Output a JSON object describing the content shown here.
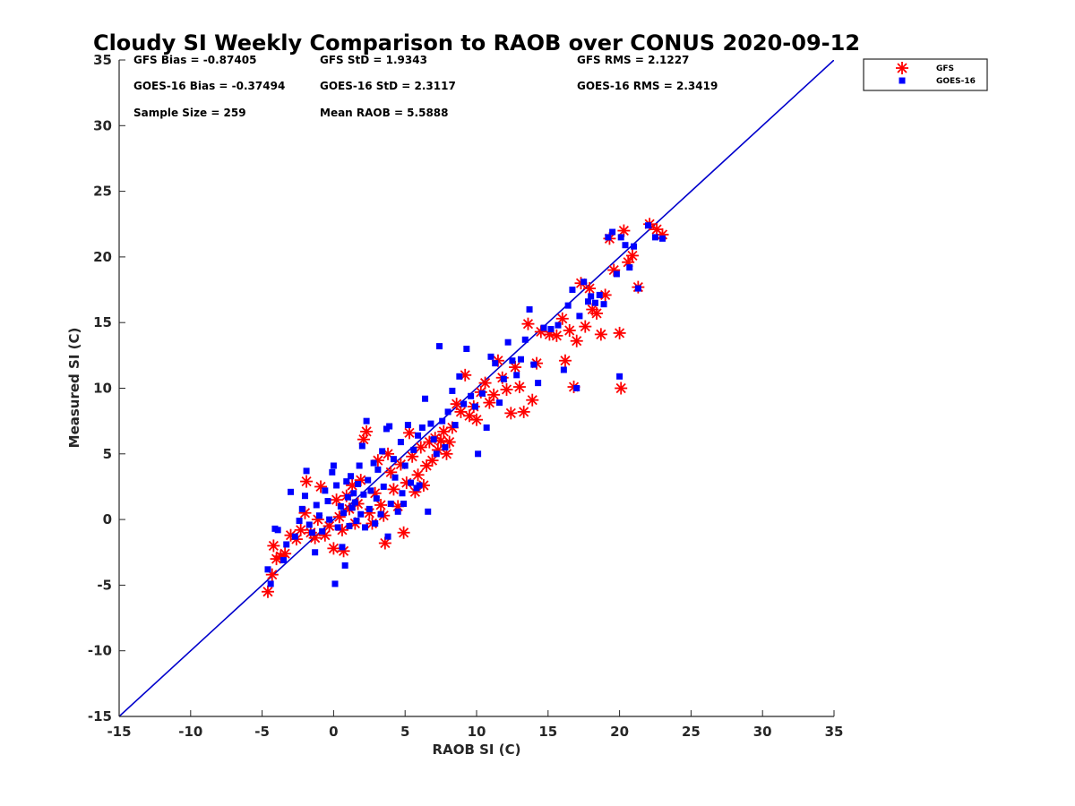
{
  "chart_data": {
    "type": "scatter",
    "title": "Cloudy SI Weekly Comparison to RAOB over CONUS 2020-09-12",
    "xlabel": "RAOB SI (C)",
    "ylabel": "Measured SI (C)",
    "xlim": [
      -15,
      35
    ],
    "ylim": [
      -15,
      35
    ],
    "xticks": [
      -15,
      -10,
      -5,
      0,
      5,
      10,
      15,
      20,
      25,
      30,
      35
    ],
    "yticks": [
      -15,
      -10,
      -5,
      0,
      5,
      10,
      15,
      20,
      25,
      30,
      35
    ],
    "grid": false,
    "legend_position": "top-right outside",
    "reference_line": {
      "name": "1:1 line",
      "x": [
        -15,
        35
      ],
      "y": [
        -15,
        35
      ],
      "color": "#0000cc"
    },
    "stats": [
      {
        "id": "gfs-bias",
        "text": "GFS Bias = -0.87405"
      },
      {
        "id": "gfs-std",
        "text": "GFS StD = 1.9343"
      },
      {
        "id": "gfs-rms",
        "text": "GFS RMS = 2.1227"
      },
      {
        "id": "goes-bias",
        "text": "GOES-16 Bias = -0.37494"
      },
      {
        "id": "goes-std",
        "text": "GOES-16 StD = 2.3117"
      },
      {
        "id": "goes-rms",
        "text": "GOES-16 RMS = 2.3419"
      },
      {
        "id": "sample-size",
        "text": "Sample Size = 259"
      },
      {
        "id": "mean-raob",
        "text": "Mean RAOB = 5.5888"
      }
    ],
    "series": [
      {
        "name": "GFS",
        "marker": "asterisk",
        "color": "#ff0000",
        "points": [
          [
            -4.6,
            -5.5
          ],
          [
            -4.3,
            -4.2
          ],
          [
            -4.2,
            -2.0
          ],
          [
            -4.0,
            -3.0
          ],
          [
            -3.7,
            -2.8
          ],
          [
            -3.4,
            -2.6
          ],
          [
            -3.0,
            -1.2
          ],
          [
            -2.6,
            -1.5
          ],
          [
            -2.3,
            -0.8
          ],
          [
            -2.0,
            0.5
          ],
          [
            -1.9,
            2.9
          ],
          [
            -1.6,
            -1.0
          ],
          [
            -1.3,
            -1.4
          ],
          [
            -1.1,
            0.0
          ],
          [
            -0.9,
            2.5
          ],
          [
            -0.6,
            -1.2
          ],
          [
            -0.3,
            -0.5
          ],
          [
            0.0,
            -2.2
          ],
          [
            0.2,
            1.5
          ],
          [
            0.4,
            0.2
          ],
          [
            0.6,
            -0.8
          ],
          [
            0.7,
            -2.4
          ],
          [
            0.9,
            1.8
          ],
          [
            1.1,
            0.8
          ],
          [
            1.3,
            2.6
          ],
          [
            1.5,
            -0.3
          ],
          [
            1.7,
            1.2
          ],
          [
            1.9,
            3.0
          ],
          [
            2.1,
            6.1
          ],
          [
            2.3,
            6.7
          ],
          [
            2.5,
            0.5
          ],
          [
            2.7,
            -0.3
          ],
          [
            2.9,
            2.0
          ],
          [
            3.1,
            4.5
          ],
          [
            3.3,
            1.1
          ],
          [
            3.5,
            0.3
          ],
          [
            3.6,
            -1.8
          ],
          [
            3.8,
            5.0
          ],
          [
            4.0,
            3.6
          ],
          [
            4.2,
            2.3
          ],
          [
            4.5,
            1.0
          ],
          [
            4.7,
            4.2
          ],
          [
            4.9,
            -1.0
          ],
          [
            5.1,
            2.8
          ],
          [
            5.3,
            6.6
          ],
          [
            5.5,
            4.8
          ],
          [
            5.7,
            2.1
          ],
          [
            5.9,
            3.4
          ],
          [
            6.1,
            5.5
          ],
          [
            6.3,
            2.6
          ],
          [
            6.5,
            4.1
          ],
          [
            6.7,
            5.9
          ],
          [
            6.9,
            4.5
          ],
          [
            7.1,
            6.2
          ],
          [
            7.3,
            5.3
          ],
          [
            7.5,
            6.0
          ],
          [
            7.7,
            6.7
          ],
          [
            7.9,
            5.0
          ],
          [
            8.1,
            5.9
          ],
          [
            8.3,
            7.0
          ],
          [
            8.6,
            8.8
          ],
          [
            8.9,
            8.2
          ],
          [
            9.2,
            11.0
          ],
          [
            9.5,
            7.9
          ],
          [
            9.8,
            8.6
          ],
          [
            10.0,
            7.6
          ],
          [
            10.3,
            9.7
          ],
          [
            10.6,
            10.4
          ],
          [
            10.9,
            8.9
          ],
          [
            11.2,
            9.5
          ],
          [
            11.5,
            12.1
          ],
          [
            11.8,
            10.8
          ],
          [
            12.1,
            9.9
          ],
          [
            12.4,
            8.1
          ],
          [
            12.7,
            11.6
          ],
          [
            13.0,
            10.1
          ],
          [
            13.3,
            8.2
          ],
          [
            13.6,
            14.9
          ],
          [
            13.9,
            9.1
          ],
          [
            14.2,
            11.9
          ],
          [
            14.5,
            14.3
          ],
          [
            15.1,
            14.1
          ],
          [
            15.6,
            14.0
          ],
          [
            16.0,
            15.3
          ],
          [
            16.2,
            12.1
          ],
          [
            16.5,
            14.4
          ],
          [
            16.8,
            10.1
          ],
          [
            17.0,
            13.6
          ],
          [
            17.3,
            18.0
          ],
          [
            17.6,
            14.7
          ],
          [
            17.9,
            17.6
          ],
          [
            18.1,
            16.0
          ],
          [
            18.4,
            15.7
          ],
          [
            18.7,
            14.1
          ],
          [
            19.0,
            17.1
          ],
          [
            19.3,
            21.4
          ],
          [
            19.6,
            19.0
          ],
          [
            20.0,
            14.2
          ],
          [
            20.1,
            10.0
          ],
          [
            20.3,
            22.0
          ],
          [
            20.6,
            19.6
          ],
          [
            20.9,
            20.1
          ],
          [
            21.3,
            17.7
          ],
          [
            22.1,
            22.5
          ],
          [
            22.6,
            22.1
          ],
          [
            23.0,
            21.7
          ]
        ]
      },
      {
        "name": "GOES-16",
        "marker": "square",
        "color": "#0000ff",
        "points": [
          [
            -4.6,
            -3.8
          ],
          [
            -4.4,
            -4.9
          ],
          [
            -4.1,
            -0.7
          ],
          [
            -3.9,
            -0.8
          ],
          [
            -3.5,
            -3.1
          ],
          [
            -3.3,
            -1.9
          ],
          [
            -3.0,
            2.1
          ],
          [
            -2.7,
            -1.3
          ],
          [
            -2.4,
            -0.1
          ],
          [
            -2.2,
            0.8
          ],
          [
            -2.0,
            1.8
          ],
          [
            -1.9,
            3.7
          ],
          [
            -1.7,
            -0.4
          ],
          [
            -1.5,
            -1.0
          ],
          [
            -1.3,
            -2.5
          ],
          [
            -1.2,
            1.1
          ],
          [
            -1.0,
            0.3
          ],
          [
            -0.8,
            -0.9
          ],
          [
            -0.6,
            2.2
          ],
          [
            -0.4,
            1.4
          ],
          [
            -0.3,
            0.0
          ],
          [
            -0.1,
            3.6
          ],
          [
            0.0,
            4.1
          ],
          [
            0.1,
            -4.9
          ],
          [
            0.2,
            2.6
          ],
          [
            0.3,
            -0.6
          ],
          [
            0.5,
            1.0
          ],
          [
            0.6,
            -2.1
          ],
          [
            0.7,
            0.5
          ],
          [
            0.8,
            -3.5
          ],
          [
            0.9,
            2.9
          ],
          [
            1.0,
            1.7
          ],
          [
            1.1,
            -0.5
          ],
          [
            1.2,
            3.3
          ],
          [
            1.3,
            0.9
          ],
          [
            1.4,
            2.0
          ],
          [
            1.5,
            1.3
          ],
          [
            1.6,
            -0.1
          ],
          [
            1.7,
            2.7
          ],
          [
            1.8,
            4.1
          ],
          [
            1.9,
            0.4
          ],
          [
            2.0,
            5.6
          ],
          [
            2.1,
            1.9
          ],
          [
            2.2,
            -0.6
          ],
          [
            2.3,
            7.5
          ],
          [
            2.4,
            3.0
          ],
          [
            2.5,
            0.8
          ],
          [
            2.6,
            2.2
          ],
          [
            2.8,
            4.3
          ],
          [
            2.9,
            -0.3
          ],
          [
            3.0,
            1.6
          ],
          [
            3.1,
            3.8
          ],
          [
            3.3,
            0.4
          ],
          [
            3.4,
            5.2
          ],
          [
            3.5,
            2.5
          ],
          [
            3.7,
            6.9
          ],
          [
            3.8,
            -1.3
          ],
          [
            3.9,
            7.1
          ],
          [
            4.0,
            1.2
          ],
          [
            4.2,
            4.6
          ],
          [
            4.3,
            3.2
          ],
          [
            4.5,
            0.6
          ],
          [
            4.7,
            5.9
          ],
          [
            4.8,
            2.0
          ],
          [
            4.9,
            1.2
          ],
          [
            5.0,
            4.1
          ],
          [
            5.2,
            7.2
          ],
          [
            5.4,
            2.8
          ],
          [
            5.6,
            5.3
          ],
          [
            5.8,
            2.4
          ],
          [
            5.9,
            6.4
          ],
          [
            6.0,
            2.6
          ],
          [
            6.2,
            7.0
          ],
          [
            6.4,
            9.2
          ],
          [
            6.6,
            0.6
          ],
          [
            6.8,
            7.3
          ],
          [
            7.0,
            6.1
          ],
          [
            7.2,
            5.0
          ],
          [
            7.4,
            13.2
          ],
          [
            7.6,
            7.5
          ],
          [
            7.8,
            5.5
          ],
          [
            8.0,
            8.2
          ],
          [
            8.3,
            9.8
          ],
          [
            8.5,
            7.2
          ],
          [
            8.8,
            10.9
          ],
          [
            9.1,
            8.8
          ],
          [
            9.3,
            13.0
          ],
          [
            9.6,
            9.4
          ],
          [
            9.9,
            8.6
          ],
          [
            10.1,
            5.0
          ],
          [
            10.4,
            9.6
          ],
          [
            10.7,
            7.0
          ],
          [
            11.0,
            12.4
          ],
          [
            11.3,
            11.9
          ],
          [
            11.6,
            8.9
          ],
          [
            11.9,
            10.7
          ],
          [
            12.2,
            13.5
          ],
          [
            12.5,
            12.1
          ],
          [
            12.8,
            11.0
          ],
          [
            13.1,
            12.2
          ],
          [
            13.4,
            13.7
          ],
          [
            13.7,
            16.0
          ],
          [
            14.0,
            11.8
          ],
          [
            14.3,
            10.4
          ],
          [
            14.7,
            14.6
          ],
          [
            15.2,
            14.5
          ],
          [
            15.7,
            14.8
          ],
          [
            16.1,
            11.4
          ],
          [
            16.4,
            16.3
          ],
          [
            16.7,
            17.5
          ],
          [
            17.0,
            10.0
          ],
          [
            17.2,
            15.5
          ],
          [
            17.5,
            18.1
          ],
          [
            17.8,
            16.6
          ],
          [
            18.0,
            17.0
          ],
          [
            18.3,
            16.5
          ],
          [
            18.6,
            17.1
          ],
          [
            18.9,
            16.4
          ],
          [
            19.2,
            21.5
          ],
          [
            19.5,
            21.9
          ],
          [
            19.8,
            18.7
          ],
          [
            20.0,
            10.9
          ],
          [
            20.1,
            21.5
          ],
          [
            20.4,
            20.9
          ],
          [
            20.7,
            19.2
          ],
          [
            21.0,
            20.8
          ],
          [
            21.3,
            17.6
          ],
          [
            22.0,
            22.4
          ],
          [
            22.5,
            21.5
          ],
          [
            23.0,
            21.4
          ]
        ]
      }
    ]
  }
}
